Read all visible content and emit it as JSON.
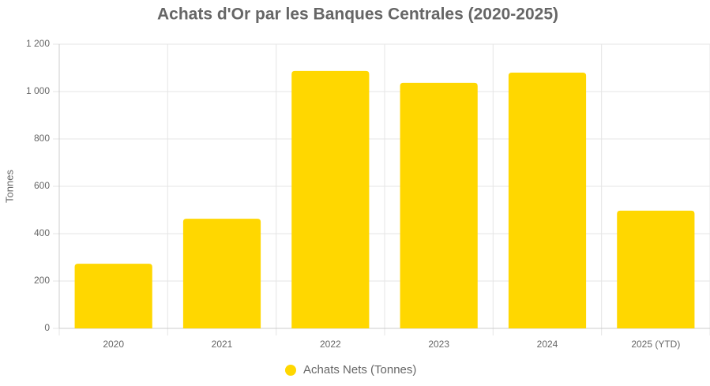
{
  "chart_data": {
    "type": "bar",
    "title": "Achats d'Or par les Banques Centrales (2020-2025)",
    "y_label": "Tonnes",
    "categories": [
      "2020",
      "2021",
      "2022",
      "2023",
      "2024",
      "2025 (YTD)"
    ],
    "series": [
      {
        "name": "Achats Nets (Tonnes)",
        "color": "#ffd700",
        "values": [
          273,
          463,
          1087,
          1037,
          1080,
          497
        ]
      }
    ],
    "ylim": [
      0,
      1200
    ],
    "yticks": [
      0,
      200,
      400,
      600,
      800,
      {
        "value": 1000,
        "label": "1 000"
      },
      {
        "value": 1200,
        "label": "1 200"
      }
    ],
    "grid": true,
    "legend": "bottom"
  }
}
